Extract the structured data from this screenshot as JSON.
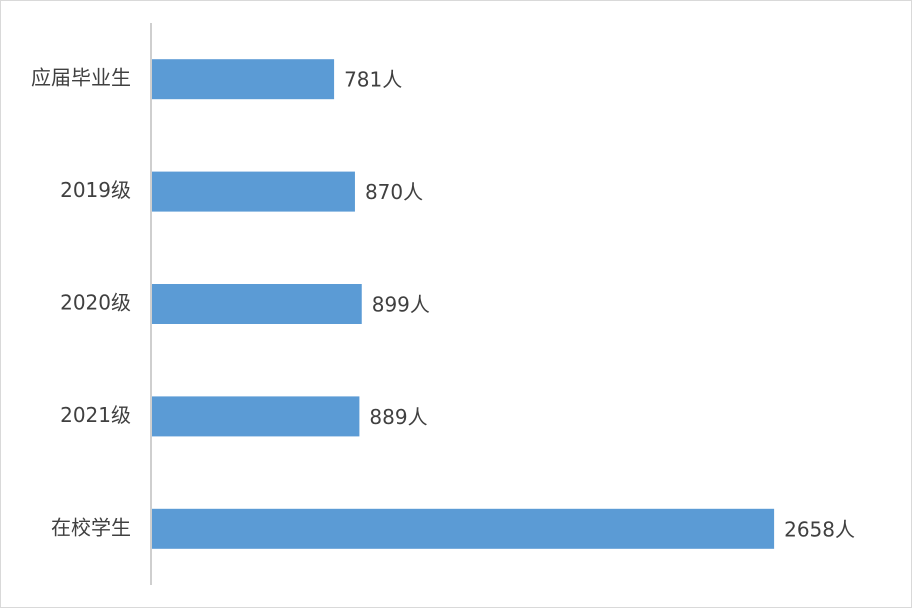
{
  "chart_data": {
    "type": "bar",
    "orientation": "horizontal",
    "title": "",
    "xlabel": "",
    "ylabel": "",
    "categories": [
      "应届毕业生",
      "2019级",
      "2020级",
      "2021级",
      "在校学生"
    ],
    "values": [
      781,
      870,
      899,
      889,
      2658
    ],
    "data_labels": [
      "781人",
      "870人",
      "899人",
      "889人",
      "2658人"
    ],
    "xlim": [
      0,
      3050
    ],
    "bar_color": "#5b9bd5",
    "axis_color": "#bfbfbf",
    "text_color": "#404040",
    "grid": false,
    "legend": "none"
  }
}
